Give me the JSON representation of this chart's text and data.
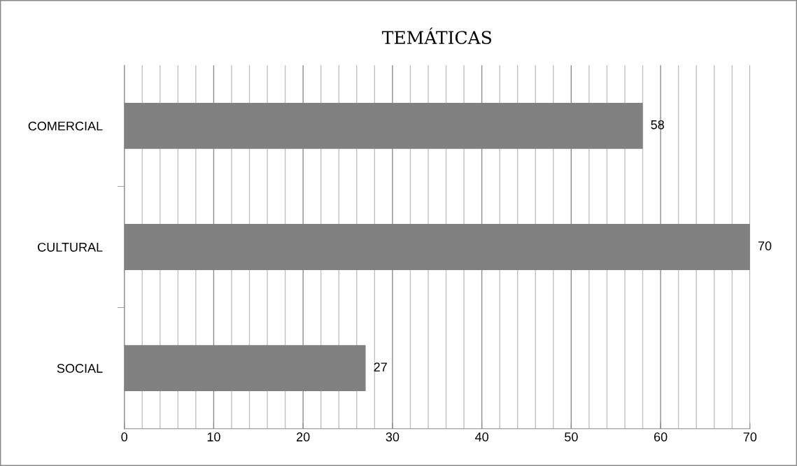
{
  "chart_data": {
    "type": "bar",
    "orientation": "horizontal",
    "title": "TEMÁTICAS",
    "categories": [
      "COMERCIAL",
      "CULTURAL",
      "SOCIAL"
    ],
    "values": [
      58,
      70,
      27
    ],
    "color": "#808080",
    "data_labels": true,
    "xlim": [
      0,
      70
    ],
    "xticks": [
      0,
      {
        "value": 2,
        "label": null
      },
      {
        "value": 4,
        "label": null
      },
      {
        "value": 6,
        "label": null
      },
      {
        "value": 8,
        "label": null
      },
      10,
      {
        "value": 12,
        "label": null
      },
      {
        "value": 14,
        "label": null
      },
      {
        "value": 16,
        "label": null
      },
      {
        "value": 18,
        "label": null
      },
      20,
      {
        "value": 22,
        "label": null
      },
      {
        "value": 24,
        "label": null
      },
      {
        "value": 26,
        "label": null
      },
      {
        "value": 28,
        "label": null
      },
      30,
      {
        "value": 32,
        "label": null
      },
      {
        "value": 34,
        "label": null
      },
      {
        "value": 36,
        "label": null
      },
      {
        "value": 38,
        "label": null
      },
      40,
      {
        "value": 42,
        "label": null
      },
      {
        "value": 44,
        "label": null
      },
      {
        "value": 46,
        "label": null
      },
      {
        "value": 48,
        "label": null
      },
      50,
      {
        "value": 52,
        "label": null
      },
      {
        "value": 54,
        "label": null
      },
      {
        "value": 56,
        "label": null
      },
      {
        "value": 58,
        "label": null
      },
      60,
      {
        "value": 62,
        "label": null
      },
      {
        "value": 64,
        "label": null
      },
      {
        "value": 66,
        "label": null
      },
      {
        "value": 68,
        "label": null
      },
      70
    ],
    "grid": "x",
    "legend": false
  }
}
